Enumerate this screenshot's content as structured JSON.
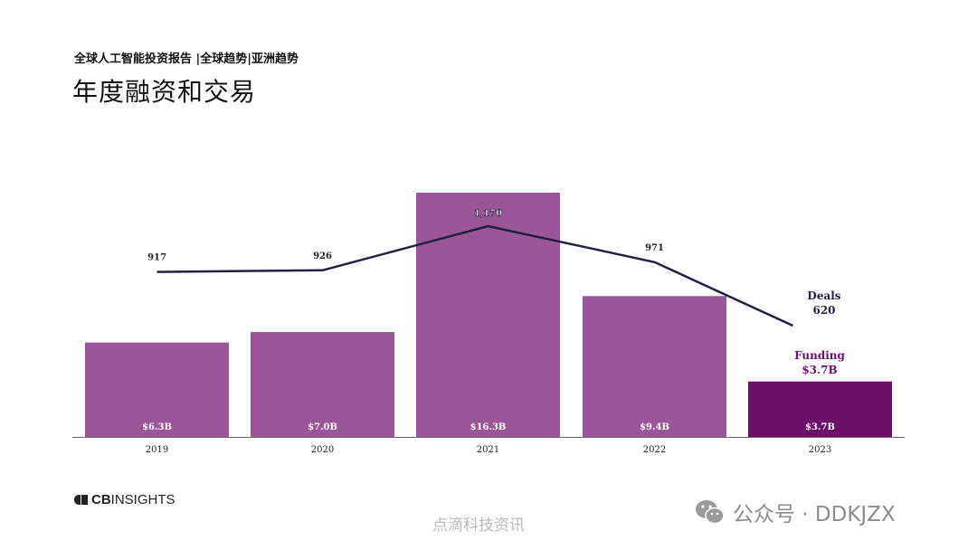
{
  "header": {
    "subtitle": "全球人工智能投资报告 |全球趋势|亚洲趋势",
    "title": "年度融资和交易"
  },
  "chart_data": {
    "type": "bar",
    "categories": [
      "2019",
      "2020",
      "2021",
      "2022",
      "2023"
    ],
    "series": [
      {
        "name": "Funding",
        "unit": "$B",
        "values": [
          6.3,
          7.0,
          16.3,
          9.4,
          3.7
        ],
        "labels": [
          "$6.3B",
          "$7.0B",
          "$16.3B",
          "$9.4B",
          "$3.7B"
        ]
      },
      {
        "name": "Deals",
        "type": "line",
        "values": [
          917,
          926,
          1170,
          971,
          620
        ],
        "labels": [
          "917",
          "926",
          "1,170",
          "971",
          "620"
        ]
      }
    ],
    "legend": {
      "funding_label": "Funding",
      "funding_value": "$3.7B",
      "deals_label": "Deals",
      "deals_value": "620"
    },
    "funding_ylim": [
      0,
      16.3
    ],
    "colors": {
      "bar": "#9b5598",
      "bar_highlight": "#6c0f6b",
      "line": "#1c2240",
      "funding_label": "#6c0f6b"
    }
  },
  "footer": {
    "logo_text_bold": "CB",
    "logo_text": "INSIGHTS",
    "watermark_center": "点滴科技资讯",
    "watermark_right": "公众号 · DDKJZX"
  }
}
